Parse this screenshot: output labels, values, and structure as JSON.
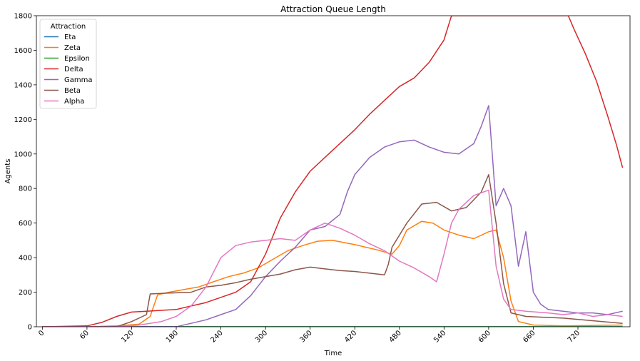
{
  "chart_data": {
    "type": "line",
    "title": "Attraction Queue Length",
    "xlabel": "Time",
    "ylabel": "Agents",
    "xlim": [
      -8,
      790
    ],
    "ylim": [
      0,
      1800
    ],
    "xticks": [
      0,
      60,
      120,
      180,
      240,
      300,
      360,
      420,
      480,
      540,
      600,
      660,
      720
    ],
    "yticks": [
      0,
      200,
      400,
      600,
      800,
      1000,
      1200,
      1400,
      1600,
      1800
    ],
    "legend": {
      "title": "Attraction",
      "placement": "top-left"
    },
    "series": [
      {
        "name": "Eta",
        "color": "#1f77b4",
        "points": [
          [
            0,
            0
          ],
          [
            780,
            0
          ]
        ]
      },
      {
        "name": "Zeta",
        "color": "#ff7f0e",
        "points": [
          [
            0,
            0
          ],
          [
            60,
            0
          ],
          [
            100,
            5
          ],
          [
            130,
            15
          ],
          [
            145,
            60
          ],
          [
            155,
            185
          ],
          [
            170,
            200
          ],
          [
            190,
            215
          ],
          [
            210,
            230
          ],
          [
            230,
            260
          ],
          [
            250,
            290
          ],
          [
            270,
            310
          ],
          [
            290,
            340
          ],
          [
            310,
            390
          ],
          [
            330,
            440
          ],
          [
            350,
            470
          ],
          [
            370,
            495
          ],
          [
            390,
            500
          ],
          [
            420,
            475
          ],
          [
            450,
            445
          ],
          [
            470,
            420
          ],
          [
            480,
            470
          ],
          [
            490,
            560
          ],
          [
            510,
            610
          ],
          [
            525,
            600
          ],
          [
            540,
            560
          ],
          [
            560,
            530
          ],
          [
            580,
            510
          ],
          [
            600,
            550
          ],
          [
            610,
            560
          ],
          [
            620,
            400
          ],
          [
            630,
            150
          ],
          [
            640,
            30
          ],
          [
            660,
            10
          ],
          [
            700,
            5
          ],
          [
            780,
            10
          ]
        ]
      },
      {
        "name": "Epsilon",
        "color": "#2ca02c",
        "points": [
          [
            0,
            0
          ],
          [
            780,
            0
          ]
        ]
      },
      {
        "name": "Delta",
        "color": "#d62728",
        "points": [
          [
            0,
            0
          ],
          [
            60,
            5
          ],
          [
            80,
            25
          ],
          [
            100,
            60
          ],
          [
            120,
            85
          ],
          [
            140,
            90
          ],
          [
            160,
            95
          ],
          [
            180,
            100
          ],
          [
            200,
            120
          ],
          [
            220,
            140
          ],
          [
            240,
            170
          ],
          [
            260,
            200
          ],
          [
            280,
            260
          ],
          [
            300,
            420
          ],
          [
            320,
            630
          ],
          [
            340,
            780
          ],
          [
            360,
            900
          ],
          [
            380,
            980
          ],
          [
            400,
            1060
          ],
          [
            420,
            1140
          ],
          [
            440,
            1230
          ],
          [
            460,
            1310
          ],
          [
            480,
            1390
          ],
          [
            500,
            1440
          ],
          [
            520,
            1530
          ],
          [
            540,
            1660
          ],
          [
            550,
            1800
          ],
          [
            707,
            1800
          ],
          [
            715,
            1720
          ],
          [
            730,
            1580
          ],
          [
            745,
            1420
          ],
          [
            760,
            1220
          ],
          [
            772,
            1050
          ],
          [
            780,
            920
          ]
        ]
      },
      {
        "name": "Gamma",
        "color": "#9467bd",
        "points": [
          [
            0,
            0
          ],
          [
            180,
            0
          ],
          [
            200,
            20
          ],
          [
            220,
            40
          ],
          [
            240,
            70
          ],
          [
            260,
            100
          ],
          [
            280,
            180
          ],
          [
            300,
            290
          ],
          [
            320,
            380
          ],
          [
            340,
            460
          ],
          [
            360,
            560
          ],
          [
            380,
            580
          ],
          [
            400,
            650
          ],
          [
            410,
            780
          ],
          [
            420,
            880
          ],
          [
            440,
            980
          ],
          [
            460,
            1040
          ],
          [
            480,
            1070
          ],
          [
            500,
            1080
          ],
          [
            520,
            1040
          ],
          [
            540,
            1010
          ],
          [
            560,
            1000
          ],
          [
            580,
            1060
          ],
          [
            590,
            1160
          ],
          [
            600,
            1280
          ],
          [
            610,
            700
          ],
          [
            620,
            800
          ],
          [
            630,
            700
          ],
          [
            640,
            350
          ],
          [
            650,
            550
          ],
          [
            660,
            200
          ],
          [
            670,
            130
          ],
          [
            680,
            100
          ],
          [
            700,
            90
          ],
          [
            720,
            80
          ],
          [
            740,
            80
          ],
          [
            760,
            70
          ],
          [
            780,
            90
          ]
        ]
      },
      {
        "name": "Beta",
        "color": "#8c564b",
        "points": [
          [
            0,
            0
          ],
          [
            100,
            0
          ],
          [
            120,
            30
          ],
          [
            140,
            70
          ],
          [
            145,
            190
          ],
          [
            170,
            195
          ],
          [
            200,
            200
          ],
          [
            220,
            230
          ],
          [
            240,
            240
          ],
          [
            260,
            255
          ],
          [
            280,
            275
          ],
          [
            300,
            290
          ],
          [
            320,
            305
          ],
          [
            340,
            330
          ],
          [
            360,
            345
          ],
          [
            380,
            335
          ],
          [
            400,
            325
          ],
          [
            420,
            320
          ],
          [
            440,
            310
          ],
          [
            460,
            300
          ],
          [
            465,
            360
          ],
          [
            470,
            460
          ],
          [
            490,
            600
          ],
          [
            510,
            710
          ],
          [
            530,
            720
          ],
          [
            550,
            670
          ],
          [
            570,
            690
          ],
          [
            590,
            780
          ],
          [
            600,
            880
          ],
          [
            610,
            600
          ],
          [
            620,
            250
          ],
          [
            630,
            80
          ],
          [
            650,
            60
          ],
          [
            700,
            50
          ],
          [
            780,
            20
          ]
        ]
      },
      {
        "name": "Alpha",
        "color": "#e377c2",
        "points": [
          [
            0,
            0
          ],
          [
            100,
            0
          ],
          [
            130,
            10
          ],
          [
            160,
            30
          ],
          [
            180,
            60
          ],
          [
            200,
            120
          ],
          [
            220,
            230
          ],
          [
            240,
            400
          ],
          [
            260,
            470
          ],
          [
            280,
            490
          ],
          [
            300,
            500
          ],
          [
            320,
            510
          ],
          [
            340,
            500
          ],
          [
            360,
            560
          ],
          [
            380,
            600
          ],
          [
            400,
            570
          ],
          [
            420,
            530
          ],
          [
            440,
            480
          ],
          [
            460,
            440
          ],
          [
            480,
            380
          ],
          [
            500,
            340
          ],
          [
            520,
            290
          ],
          [
            530,
            260
          ],
          [
            540,
            420
          ],
          [
            550,
            600
          ],
          [
            560,
            680
          ],
          [
            580,
            760
          ],
          [
            600,
            790
          ],
          [
            610,
            350
          ],
          [
            620,
            160
          ],
          [
            630,
            100
          ],
          [
            650,
            90
          ],
          [
            680,
            80
          ],
          [
            700,
            70
          ],
          [
            720,
            80
          ],
          [
            740,
            60
          ],
          [
            760,
            70
          ],
          [
            780,
            60
          ]
        ]
      }
    ]
  }
}
